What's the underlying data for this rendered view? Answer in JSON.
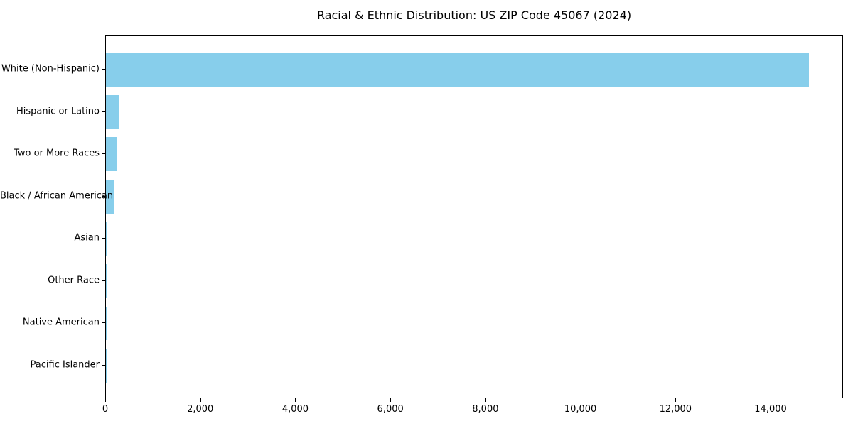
{
  "figure": {
    "background": "#ffffff"
  },
  "chart_data": {
    "type": "bar",
    "orientation": "horizontal",
    "title": "Racial & Ethnic Distribution: US ZIP Code 45067 (2024)",
    "categories": [
      "White (Non-Hispanic)",
      "Hispanic or Latino",
      "Two or More Races",
      "Black / African American",
      "Asian",
      "Other Race",
      "Native American",
      "Pacific Islander"
    ],
    "values": [
      14790,
      270,
      240,
      180,
      25,
      10,
      4,
      2
    ],
    "xlabel": "",
    "ylabel": "",
    "xlim": [
      0,
      15525
    ],
    "x_ticks": [
      {
        "value": 0,
        "label": "0"
      },
      {
        "value": 2000,
        "label": "2,000"
      },
      {
        "value": 4000,
        "label": "4,000"
      },
      {
        "value": 6000,
        "label": "6,000"
      },
      {
        "value": 8000,
        "label": "8,000"
      },
      {
        "value": 10000,
        "label": "10,000"
      },
      {
        "value": 12000,
        "label": "12,000"
      },
      {
        "value": 14000,
        "label": "14,000"
      }
    ],
    "grid": false,
    "legend": "none",
    "bar_color": "#87CEEB",
    "axis_color": "#000000",
    "text_color": "#000000"
  }
}
